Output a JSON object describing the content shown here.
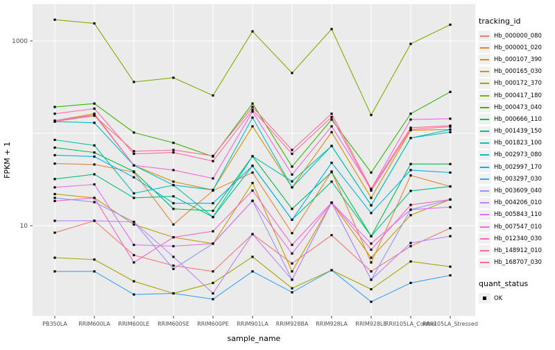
{
  "figure": {
    "y_axis_title": "FPKM + 1",
    "x_axis_title": "sample_name",
    "legend_title": "tracking_id",
    "quant_legend_title": "quant_status",
    "quant_ok_label": "OK"
  },
  "chart_data": {
    "type": "line",
    "title": "",
    "xlabel": "sample_name",
    "ylabel": "FPKM + 1",
    "y_scale": "log10",
    "ylim": [
      1.05,
      2500
    ],
    "y_tick_values": [
      10,
      1000
    ],
    "y_gridline_values": [
      10,
      100,
      1000
    ],
    "grid": true,
    "legend_position": "right",
    "panel_background": "#EBEBEB",
    "gridline_color": "#FFFFFF",
    "point_color": "#000000",
    "quant_status": {
      "label": "OK",
      "marker": "black-square"
    },
    "categories": [
      "PB350LA",
      "RRIM600LA",
      "RRIM600LE",
      "RRIM600SE",
      "RRIM600PE",
      "RRIM901LA",
      "RRIM928BA",
      "RRIM928LA",
      "RRIM928LE",
      "RRII105LA_Control",
      "RRII105LA_Stressed"
    ],
    "series": [
      {
        "name": "Hb_000000_080",
        "color": "#F8766D",
        "values": [
          8.4,
          11.3,
          4.8,
          3.7,
          3.2,
          8.1,
          3.9,
          7.9,
          3.2,
          6.0,
          9.4
        ]
      },
      {
        "name": "Hb_000001_020",
        "color": "#EA8331",
        "values": [
          47,
          46,
          38,
          10.3,
          24,
          37.6,
          8.3,
          38.6,
          4.0,
          35,
          26.6
        ]
      },
      {
        "name": "Hb_000107_390",
        "color": "#D89000",
        "values": [
          137,
          163,
          45,
          30,
          24.4,
          119,
          26,
          103,
          20,
          108,
          110
        ]
      },
      {
        "name": "Hb_000165_030",
        "color": "#C09B00",
        "values": [
          22,
          20,
          10.3,
          7.5,
          6.4,
          29,
          3.2,
          17.8,
          4.5,
          13,
          19.2
        ]
      },
      {
        "name": "Hb_000172_370",
        "color": "#A3A500",
        "values": [
          4.5,
          4.3,
          2.5,
          1.85,
          2.4,
          4.6,
          2.1,
          3.3,
          2.05,
          4.1,
          3.6
        ]
      },
      {
        "name": "Hb_000417_180",
        "color": "#7CAE00",
        "values": [
          1700,
          1550,
          360,
          400,
          257,
          1270,
          450,
          1345,
          158,
          930,
          1500
        ]
      },
      {
        "name": "Hb_000473_040",
        "color": "#39B600",
        "values": [
          193,
          210,
          102,
          79,
          56,
          210,
          43.6,
          141,
          37.6,
          163,
          281
        ]
      },
      {
        "name": "Hb_000666_110",
        "color": "#00BB4E",
        "values": [
          70,
          62,
          38.6,
          15.2,
          14.5,
          56.5,
          15.2,
          38,
          7.7,
          46.5,
          46.5
        ]
      },
      {
        "name": "Hb_001439_150",
        "color": "#00BF7D",
        "values": [
          32,
          36,
          20,
          20.8,
          12.4,
          44.5,
          11.6,
          30,
          7.7,
          23.8,
          26.6
        ]
      },
      {
        "name": "Hb_001823_100",
        "color": "#00C0AF",
        "values": [
          85,
          74,
          22.4,
          27.5,
          12.4,
          56.5,
          30.2,
          73,
          16.6,
          89,
          103
        ]
      },
      {
        "name": "Hb_002973_080",
        "color": "#00BFC4",
        "values": [
          134,
          130,
          45,
          27.5,
          24.4,
          148,
          26,
          73,
          16.6,
          89,
          110
        ]
      },
      {
        "name": "Hb_002997_170",
        "color": "#00B0F6",
        "values": [
          58,
          56,
          33.4,
          17.5,
          17.5,
          44.5,
          11.6,
          48,
          13.7,
          40,
          37.6
        ]
      },
      {
        "name": "Hb_003297_030",
        "color": "#35A2FF",
        "values": [
          3.2,
          3.2,
          1.8,
          1.85,
          1.6,
          3.2,
          1.9,
          3.3,
          1.5,
          2.4,
          2.9
        ]
      },
      {
        "name": "Hb_003609_040",
        "color": "#9590FF",
        "values": [
          20,
          18,
          11,
          3.4,
          6.4,
          18.6,
          2.6,
          17.8,
          2.6,
          14.9,
          19.2
        ]
      },
      {
        "name": "Hb_004206_010",
        "color": "#BC81FF",
        "values": [
          11.3,
          11.3,
          11,
          4.6,
          1.85,
          8.1,
          2.6,
          17.8,
          2.6,
          6.5,
          7.7
        ]
      },
      {
        "name": "Hb_005843_110",
        "color": "#E26EF7",
        "values": [
          26,
          28,
          6.2,
          6.0,
          6.4,
          18.6,
          5.0,
          17.8,
          6.4,
          14.9,
          15.9
        ]
      },
      {
        "name": "Hb_007547_010",
        "color": "#F763E0",
        "values": [
          137,
          158,
          45,
          40,
          32.5,
          172,
          35.8,
          119,
          25,
          141,
          144
        ]
      },
      {
        "name": "Hb_012340_030",
        "color": "#FF61C7",
        "values": [
          18.5,
          20,
          4.0,
          7.5,
          8.7,
          24,
          6.2,
          17.8,
          5.5,
          16.8,
          19.2
        ]
      },
      {
        "name": "Hb_148912_010",
        "color": "#FF68A5",
        "values": [
          163,
          185,
          60,
          62,
          50,
          180,
          60,
          150,
          24,
          110,
          118
        ]
      },
      {
        "name": "Hb_168707_030",
        "color": "#FF6B8E",
        "values": [
          134,
          155,
          64,
          66,
          57,
          193,
          66,
          163,
          25,
          115,
          121
        ]
      }
    ]
  }
}
